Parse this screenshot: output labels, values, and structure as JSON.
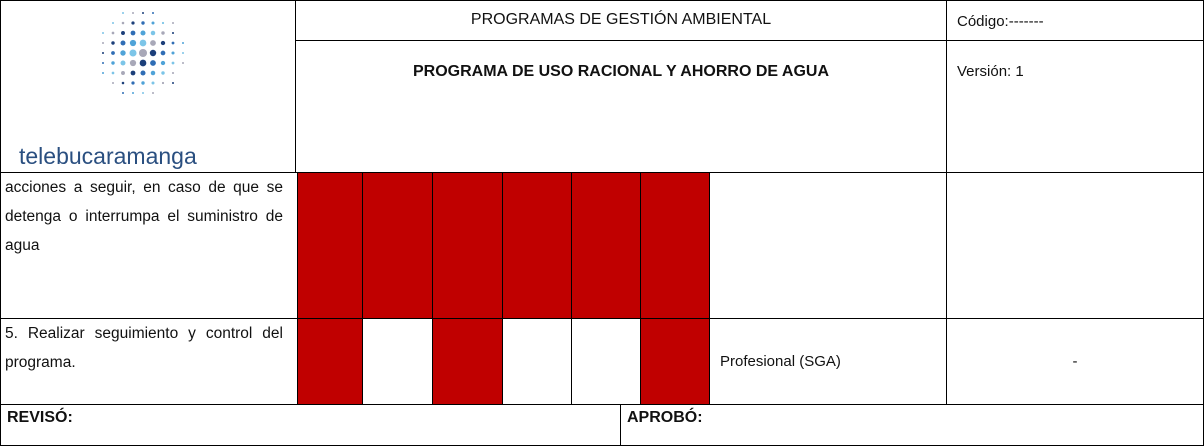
{
  "header": {
    "logo_text": "telebucaramanga",
    "title": "PROGRAMAS DE GESTIÓN AMBIENTAL",
    "subtitle": "PROGRAMA DE USO RACIONAL Y AHORRO DE  AGUA",
    "code": "Código:-------",
    "version": "Versión: 1"
  },
  "rows": [
    {
      "activity": "acciones a seguir, en caso de que se detenga o interrumpa el suministro de agua",
      "schedule": [
        true,
        true,
        true,
        true,
        true,
        true
      ],
      "responsible": "",
      "observation": ""
    },
    {
      "activity": "5. Realizar seguimiento y control del programa.",
      "schedule": [
        true,
        false,
        true,
        false,
        false,
        true
      ],
      "responsible": "Profesional (SGA)",
      "observation": "-"
    }
  ],
  "footer": {
    "reviewed": "REVISÓ:",
    "approved": "APROBÓ:"
  }
}
